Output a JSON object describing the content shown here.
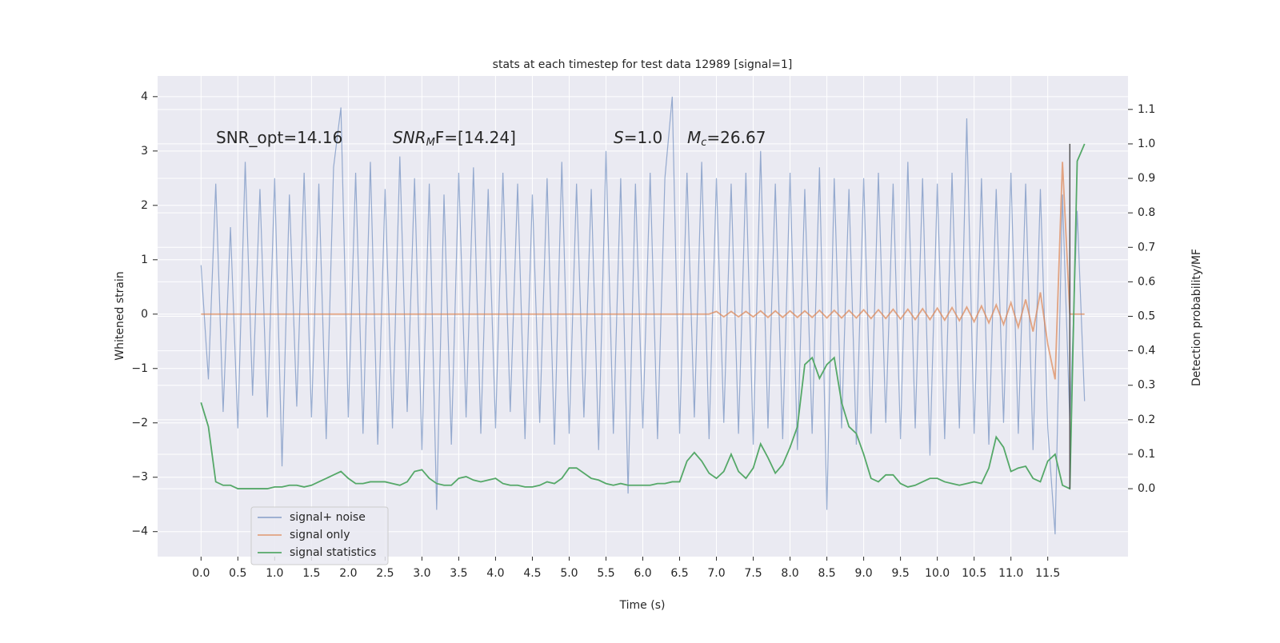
{
  "chart_data": {
    "type": "line",
    "title": "stats at each timestep for test data 12989 [signal=1]",
    "xlabel": "Time (s)",
    "ylabel": "Whitened strain",
    "y2label": "Detection probability/MF",
    "annotations": [
      {
        "text": "SNR_opt=14.16"
      },
      {
        "italic": "SNR",
        "sub": "M",
        "text": "F=[14.24]"
      },
      {
        "italic": "S",
        "text": "=1.0"
      },
      {
        "italic": "M",
        "sub": "c",
        "text": "=26.67"
      }
    ],
    "xlim": [
      -0.59,
      12.59
    ],
    "ylim": [
      -4.46,
      4.38
    ],
    "y2lim": [
      -0.197,
      1.197
    ],
    "xticks": [
      {
        "value": 0,
        "label": "0.0"
      },
      {
        "value": 0.5,
        "label": "0.5"
      },
      {
        "value": 1,
        "label": "1.0"
      },
      {
        "value": 1.5,
        "label": "1.5"
      },
      {
        "value": 2,
        "label": "2.0"
      },
      {
        "value": 2.5,
        "label": "2.5"
      },
      {
        "value": 3,
        "label": "3.0"
      },
      {
        "value": 3.5,
        "label": "3.5"
      },
      {
        "value": 4,
        "label": "4.0"
      },
      {
        "value": 4.5,
        "label": "4.5"
      },
      {
        "value": 5,
        "label": "5.0"
      },
      {
        "value": 5.5,
        "label": "5.5"
      },
      {
        "value": 6,
        "label": "6.0"
      },
      {
        "value": 6.5,
        "label": "6.5"
      },
      {
        "value": 7,
        "label": "7.0"
      },
      {
        "value": 7.5,
        "label": "7.5"
      },
      {
        "value": 8,
        "label": "8.0"
      },
      {
        "value": 8.5,
        "label": "8.5"
      },
      {
        "value": 9,
        "label": "9.0"
      },
      {
        "value": 9.5,
        "label": "9.5"
      },
      {
        "value": 10,
        "label": "10.0"
      },
      {
        "value": 10.5,
        "label": "10.5"
      },
      {
        "value": 11,
        "label": "11.0"
      },
      {
        "value": 11.5,
        "label": "11.5"
      }
    ],
    "yticks": [
      {
        "value": -4,
        "label": "−4"
      },
      {
        "value": -3,
        "label": "−3"
      },
      {
        "value": -2,
        "label": "−2"
      },
      {
        "value": -1,
        "label": "−1"
      },
      0,
      1,
      2,
      3,
      4
    ],
    "y2ticks": [
      {
        "value": 0,
        "label": "0.0"
      },
      {
        "value": 0.1,
        "label": "0.1"
      },
      {
        "value": 0.2,
        "label": "0.2"
      },
      {
        "value": 0.3,
        "label": "0.3"
      },
      {
        "value": 0.4,
        "label": "0.4"
      },
      {
        "value": 0.5,
        "label": "0.5"
      },
      {
        "value": 0.6,
        "label": "0.6"
      },
      {
        "value": 0.7,
        "label": "0.7"
      },
      {
        "value": 0.8,
        "label": "0.8"
      },
      {
        "value": 0.9,
        "label": "0.9"
      },
      {
        "value": 1.0,
        "label": "1.0"
      },
      {
        "value": 1.1,
        "label": "1.1"
      }
    ],
    "grid": true,
    "x": [
      0,
      0.1,
      0.2,
      0.3,
      0.4,
      0.5,
      0.6,
      0.7,
      0.8,
      0.9,
      1,
      1.1,
      1.2,
      1.3,
      1.4,
      1.5,
      1.6,
      1.7,
      1.8,
      1.9,
      2,
      2.1,
      2.2,
      2.3,
      2.4,
      2.5,
      2.6,
      2.7,
      2.8,
      2.9,
      3,
      3.1,
      3.2,
      3.3,
      3.4,
      3.5,
      3.6,
      3.7,
      3.8,
      3.9,
      4,
      4.1,
      4.2,
      4.3,
      4.4,
      4.5,
      4.6,
      4.7,
      4.8,
      4.9,
      5,
      5.1,
      5.2,
      5.3,
      5.4,
      5.5,
      5.6,
      5.7,
      5.8,
      5.9,
      6,
      6.1,
      6.2,
      6.3,
      6.4,
      6.5,
      6.6,
      6.7,
      6.8,
      6.9,
      7,
      7.1,
      7.2,
      7.3,
      7.4,
      7.5,
      7.6,
      7.7,
      7.8,
      7.9,
      8,
      8.1,
      8.2,
      8.3,
      8.4,
      8.5,
      8.6,
      8.7,
      8.8,
      8.9,
      9,
      9.1,
      9.2,
      9.3,
      9.4,
      9.5,
      9.6,
      9.7,
      9.8,
      9.9,
      10,
      10.1,
      10.2,
      10.3,
      10.4,
      10.5,
      10.6,
      10.7,
      10.8,
      10.9,
      11,
      11.1,
      11.2,
      11.3,
      11.4,
      11.5,
      11.6,
      11.7,
      11.8,
      11.9,
      12
    ],
    "series": [
      {
        "name": "signal+ noise",
        "color": "#4c72b0",
        "values": [
          0.9,
          -1.2,
          2.4,
          -1.8,
          1.6,
          -2.1,
          2.8,
          -1.5,
          2.3,
          -1.9,
          2.5,
          -2.8,
          2.2,
          -1.7,
          2.6,
          -1.9,
          2.4,
          -2.3,
          2.7,
          3.8,
          -1.9,
          2.6,
          -2.2,
          2.8,
          -2.4,
          2.3,
          -2.1,
          2.9,
          -1.8,
          2.5,
          -2.5,
          2.4,
          -3.6,
          2.2,
          -2.4,
          2.6,
          -1.9,
          2.7,
          -2.2,
          2.3,
          -2.1,
          2.6,
          -1.8,
          2.4,
          -2.3,
          2.2,
          -2.0,
          2.5,
          -2.4,
          2.8,
          -2.2,
          2.4,
          -1.9,
          2.3,
          -2.5,
          3.0,
          -2.2,
          2.5,
          -3.3,
          2.4,
          -2.1,
          2.6,
          -2.3,
          2.5,
          4.0,
          -2.2,
          2.6,
          -1.9,
          2.8,
          -2.3,
          2.5,
          -2.0,
          2.4,
          -2.2,
          2.6,
          -2.4,
          3.0,
          -2.1,
          2.4,
          -2.3,
          2.6,
          -2.5,
          2.3,
          -2.2,
          2.7,
          -3.6,
          2.5,
          -2.1,
          2.3,
          -2.4,
          2.5,
          -2.2,
          2.6,
          -2.0,
          2.4,
          -2.3,
          2.8,
          -2.1,
          2.5,
          -2.6,
          2.4,
          -2.3,
          2.6,
          -2.1,
          3.6,
          -2.2,
          2.5,
          -2.4,
          2.3,
          -2.0,
          2.6,
          -2.2,
          2.4,
          -2.5,
          2.3,
          -2.1,
          -4.05,
          2.2,
          -2.0,
          1.9,
          -1.6
        ]
      },
      {
        "name": "signal only",
        "color": "#dd8452",
        "values": [
          0,
          0,
          0,
          0,
          0,
          0,
          0,
          0,
          0,
          0,
          0,
          0,
          0,
          0,
          0,
          0,
          0,
          0,
          0,
          0,
          0,
          0,
          0,
          0,
          0,
          0,
          0,
          0,
          0,
          0,
          0,
          0,
          0,
          0,
          0,
          0,
          0,
          0,
          0,
          0,
          0,
          0,
          0,
          0,
          0,
          0,
          0,
          0,
          0,
          0,
          0,
          0,
          0,
          0,
          0,
          0,
          0,
          0,
          0,
          0,
          0,
          0,
          0,
          0,
          0,
          0,
          0,
          0,
          0,
          0,
          0.05,
          -0.05,
          0.05,
          -0.05,
          0.05,
          -0.05,
          0.06,
          -0.06,
          0.06,
          -0.06,
          0.06,
          -0.06,
          0.06,
          -0.06,
          0.07,
          -0.07,
          0.07,
          -0.07,
          0.07,
          -0.07,
          0.08,
          -0.08,
          0.08,
          -0.08,
          0.09,
          -0.09,
          0.09,
          -0.1,
          0.1,
          -0.1,
          0.11,
          -0.11,
          0.12,
          -0.12,
          0.13,
          -0.14,
          0.15,
          -0.16,
          0.17,
          -0.19,
          0.21,
          -0.24,
          0.27,
          -0.32,
          0.4,
          -0.55,
          -1.2,
          2.8,
          0,
          0,
          0
        ]
      },
      {
        "name": "signal statistics",
        "color": "#55a868",
        "axis": "y2",
        "values": [
          0.25,
          0.18,
          0.02,
          0.01,
          0.01,
          0.0,
          0.0,
          0.0,
          0.0,
          0.0,
          0.005,
          0.005,
          0.01,
          0.01,
          0.005,
          0.01,
          0.02,
          0.03,
          0.04,
          0.05,
          0.03,
          0.015,
          0.015,
          0.02,
          0.02,
          0.02,
          0.015,
          0.01,
          0.02,
          0.05,
          0.055,
          0.03,
          0.015,
          0.01,
          0.01,
          0.03,
          0.035,
          0.025,
          0.02,
          0.025,
          0.03,
          0.015,
          0.01,
          0.01,
          0.005,
          0.005,
          0.01,
          0.02,
          0.015,
          0.03,
          0.06,
          0.06,
          0.045,
          0.03,
          0.025,
          0.015,
          0.01,
          0.015,
          0.01,
          0.01,
          0.01,
          0.01,
          0.015,
          0.015,
          0.02,
          0.02,
          0.08,
          0.105,
          0.08,
          0.045,
          0.03,
          0.05,
          0.1,
          0.05,
          0.03,
          0.06,
          0.13,
          0.09,
          0.045,
          0.07,
          0.12,
          0.18,
          0.36,
          0.38,
          0.32,
          0.36,
          0.38,
          0.25,
          0.18,
          0.16,
          0.1,
          0.03,
          0.02,
          0.04,
          0.04,
          0.015,
          0.005,
          0.01,
          0.02,
          0.03,
          0.03,
          0.02,
          0.015,
          0.01,
          0.015,
          0.02,
          0.015,
          0.06,
          0.15,
          0.12,
          0.05,
          0.06,
          0.065,
          0.03,
          0.02,
          0.08,
          0.1,
          0.01,
          0.0,
          0.95,
          1.0
        ]
      }
    ],
    "vline": {
      "x": 11.8,
      "ymin": 0.0,
      "ymax": 1.0,
      "axis": "y2",
      "color": "#555555"
    },
    "legend": "lower left"
  }
}
